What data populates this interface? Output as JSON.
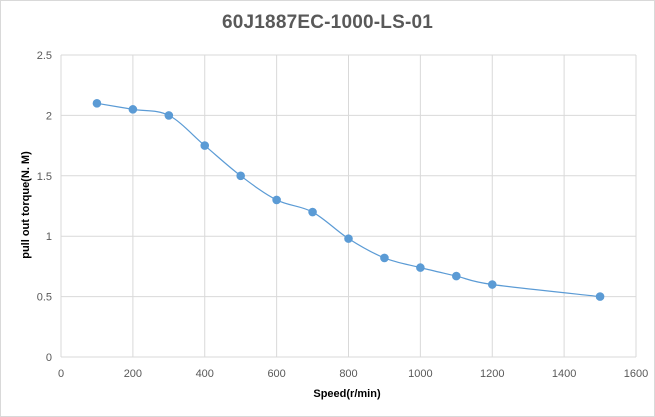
{
  "chart_data": {
    "type": "line",
    "title": "60J1887EC-1000-LS-01",
    "xlabel": "Speed(r/min)",
    "ylabel": "pull out torque(N. M)",
    "xlim": [
      0,
      1600
    ],
    "ylim": [
      0,
      2.5
    ],
    "x_ticks": [
      "0",
      "200",
      "400",
      "600",
      "800",
      "1000",
      "1200",
      "1400",
      "1600"
    ],
    "y_ticks": [
      "0",
      "0.5",
      "1",
      "1.5",
      "2",
      "2.5"
    ],
    "grid": "vertical and horizontal",
    "legend": "none",
    "series": [
      {
        "x": [
          100,
          200,
          300,
          400,
          500,
          600,
          700,
          800,
          900,
          1000,
          1100,
          1200,
          1500
        ],
        "y": [
          2.1,
          2.05,
          2.0,
          1.75,
          1.5,
          1.3,
          1.2,
          0.98,
          0.82,
          0.74,
          0.67,
          0.6,
          0.5
        ]
      }
    ],
    "colors": {
      "line": "#5b9bd5",
      "marker": "#5b9bd5",
      "grid": "#d9d9d9",
      "text": "#595959"
    }
  }
}
